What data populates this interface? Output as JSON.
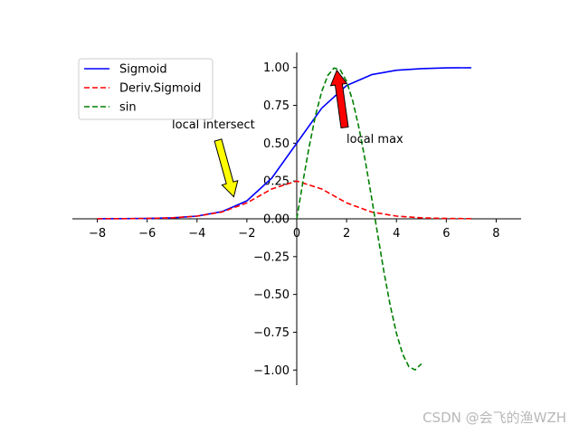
{
  "chart_data": {
    "type": "line",
    "title": "",
    "xlabel": "",
    "ylabel": "",
    "xlim": [
      -9,
      9
    ],
    "ylim": [
      -1.1,
      1.1
    ],
    "x_ticks": [
      -8,
      -6,
      -4,
      -2,
      0,
      2,
      4,
      6,
      8
    ],
    "y_ticks": [
      -1.0,
      -0.75,
      -0.5,
      -0.25,
      0.0,
      0.25,
      0.5,
      0.75,
      1.0
    ],
    "x_tick_labels": [
      "−8",
      "−6",
      "−4",
      "−2",
      "0",
      "2",
      "4",
      "6",
      "8"
    ],
    "y_tick_labels": [
      "−1.00",
      "−0.75",
      "−0.50",
      "−0.25",
      "0.00",
      "0.25",
      "0.50",
      "0.75",
      "1.00"
    ],
    "spines": "centered at origin",
    "grid": false,
    "legend_position": "upper-left",
    "series": [
      {
        "name": "Sigmoid",
        "style": "solid",
        "color": "#0000ff",
        "x": [
          -8,
          -7,
          -6,
          -5,
          -4,
          -3,
          -2,
          -1,
          0,
          1,
          2,
          3,
          4,
          5,
          6,
          7
        ],
        "y": [
          0.0003,
          0.0009,
          0.0025,
          0.0067,
          0.018,
          0.047,
          0.119,
          0.269,
          0.5,
          0.731,
          0.881,
          0.953,
          0.982,
          0.993,
          0.998,
          0.999
        ]
      },
      {
        "name": "Deriv.Sigmoid",
        "style": "dashed",
        "color": "#ff0000",
        "x": [
          -8,
          -7,
          -6,
          -5,
          -4,
          -3,
          -2,
          -1,
          0,
          1,
          2,
          3,
          4,
          5,
          6,
          7
        ],
        "y": [
          0.0003,
          0.0009,
          0.0025,
          0.0066,
          0.018,
          0.045,
          0.105,
          0.197,
          0.25,
          0.197,
          0.105,
          0.045,
          0.018,
          0.0066,
          0.0025,
          0.0009
        ]
      },
      {
        "name": "sin",
        "style": "dashed",
        "color": "#008000",
        "x": [
          0,
          0.25,
          0.5,
          0.75,
          1.0,
          1.25,
          1.5,
          1.75,
          2.0,
          2.25,
          2.5,
          2.75,
          3.0,
          3.25,
          3.5,
          3.75,
          4.0,
          4.25,
          4.5,
          4.75,
          5.0
        ],
        "y": [
          0,
          0.247,
          0.479,
          0.682,
          0.841,
          0.949,
          0.997,
          0.984,
          0.909,
          0.778,
          0.598,
          0.382,
          0.141,
          -0.108,
          -0.351,
          -0.572,
          -0.757,
          -0.895,
          -0.978,
          -0.999,
          -0.959
        ]
      }
    ],
    "annotations": [
      {
        "text": "local intersect",
        "point": [
          -2.6,
          0.14
        ],
        "color": "#ffff00"
      },
      {
        "text": "local max",
        "point": [
          1.57,
          1.0
        ],
        "color": "#ff0000"
      }
    ]
  },
  "watermark": "CSDN @会飞的渔WZH"
}
